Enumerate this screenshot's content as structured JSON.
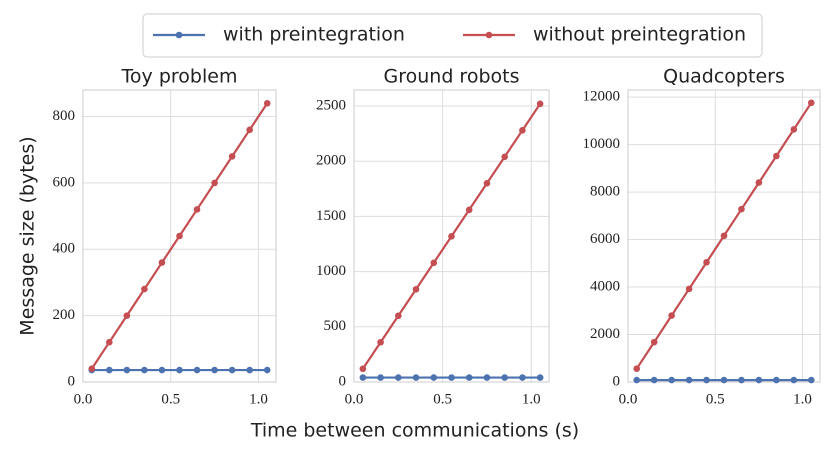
{
  "chart_data": [
    {
      "type": "line",
      "title": "Toy problem",
      "ylabel": "Message size (bytes)",
      "x": [
        0.05,
        0.15,
        0.25,
        0.35,
        0.45,
        0.55,
        0.65,
        0.75,
        0.85,
        0.95,
        1.05
      ],
      "series": [
        {
          "name": "with preintegration",
          "color": "#4c72b0",
          "values": [
            36,
            36,
            36,
            36,
            36,
            36,
            36,
            36,
            36,
            36,
            36
          ]
        },
        {
          "name": "without preintegration",
          "color": "#c44e52",
          "values": [
            40,
            120,
            200,
            280,
            360,
            440,
            520,
            600,
            680,
            760,
            840
          ]
        }
      ],
      "xlim": [
        0,
        1.1
      ],
      "xticks": [
        {
          "value": 0,
          "label": "0.0"
        },
        0.5,
        {
          "value": 1,
          "label": "1.0"
        }
      ],
      "ylim": [
        0,
        880
      ],
      "yticks": [
        0,
        200,
        400,
        600,
        800
      ],
      "grid": true
    },
    {
      "type": "line",
      "title": "Ground robots",
      "xlabel": "Time between communications (s)",
      "x": [
        0.05,
        0.15,
        0.25,
        0.35,
        0.45,
        0.55,
        0.65,
        0.75,
        0.85,
        0.95,
        1.05
      ],
      "series": [
        {
          "name": "with preintegration",
          "color": "#4c72b0",
          "values": [
            40,
            40,
            40,
            40,
            40,
            40,
            40,
            40,
            40,
            40,
            40
          ]
        },
        {
          "name": "without preintegration",
          "color": "#c44e52",
          "values": [
            120,
            360,
            600,
            840,
            1080,
            1320,
            1560,
            1800,
            2040,
            2280,
            2520
          ]
        }
      ],
      "xlim": [
        0,
        1.1
      ],
      "xticks": [
        {
          "value": 0,
          "label": "0.0"
        },
        0.5,
        {
          "value": 1,
          "label": "1.0"
        }
      ],
      "ylim": [
        0,
        2645
      ],
      "yticks": [
        0,
        500,
        1000,
        1500,
        2000,
        2500
      ],
      "grid": true
    },
    {
      "type": "line",
      "title": "Quadcopters",
      "x": [
        0.05,
        0.15,
        0.25,
        0.35,
        0.45,
        0.55,
        0.65,
        0.75,
        0.85,
        0.95,
        1.05
      ],
      "series": [
        {
          "name": "with preintegration",
          "color": "#4c72b0",
          "values": [
            80,
            80,
            80,
            80,
            80,
            80,
            80,
            80,
            80,
            80,
            80
          ]
        },
        {
          "name": "without preintegration",
          "color": "#c44e52",
          "values": [
            560,
            1680,
            2800,
            3920,
            5040,
            6160,
            7280,
            8400,
            9520,
            10640,
            11760
          ]
        }
      ],
      "xlim": [
        0,
        1.1
      ],
      "xticks": [
        {
          "value": 0,
          "label": "0.0"
        },
        0.5,
        {
          "value": 1,
          "label": "1.0"
        }
      ],
      "ylim": [
        0,
        12300
      ],
      "yticks": [
        0,
        2000,
        4000,
        6000,
        8000,
        10000,
        12000
      ],
      "grid": true
    }
  ]
}
